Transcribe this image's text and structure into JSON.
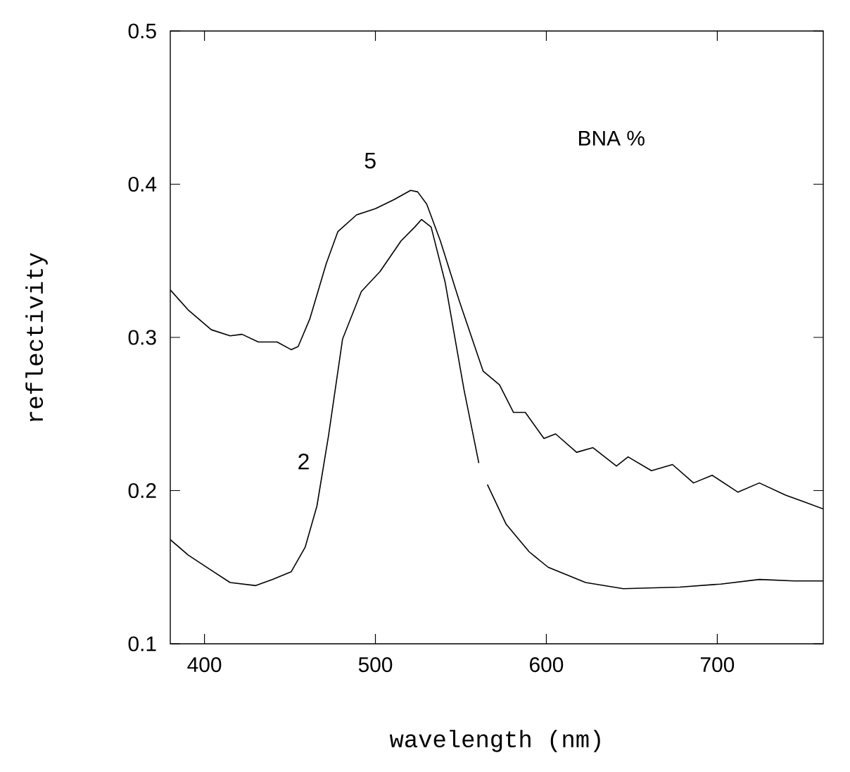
{
  "chart_data": {
    "type": "line",
    "xlabel": "wavelength (nm)",
    "ylabel": "reflectivity",
    "legend_title": "BNA %",
    "xlim": [
      380,
      762
    ],
    "ylim": [
      0.1,
      0.5
    ],
    "xticks": [
      400,
      500,
      600,
      700
    ],
    "yticks": [
      0.1,
      0.2,
      0.3,
      0.4,
      0.5
    ],
    "grid": false,
    "marker": "none",
    "line_style": "solid",
    "series": [
      {
        "name": "5",
        "color": "#000000",
        "x": [
          380,
          390.4,
          404,
          415,
          422,
          431.5,
          442.5,
          450.7,
          454.8,
          461.6,
          471.2,
          478,
          489,
          500,
          511,
          520.6,
          524.7,
          530,
          538,
          549,
          563,
          572.6,
          580.8,
          587.7,
          598.6,
          605.4,
          617.7,
          627.3,
          641,
          647.8,
          661.5,
          673.8,
          686.1,
          697,
          712,
          724.6,
          740,
          750,
          762
        ],
        "values": [
          0.331,
          0.318,
          0.305,
          0.301,
          0.302,
          0.297,
          0.297,
          0.292,
          0.294,
          0.312,
          0.348,
          0.369,
          0.38,
          0.384,
          0.39,
          0.396,
          0.395,
          0.387,
          0.363,
          0.324,
          0.278,
          0.269,
          0.251,
          0.251,
          0.234,
          0.237,
          0.225,
          0.228,
          0.216,
          0.222,
          0.213,
          0.217,
          0.205,
          0.21,
          0.199,
          0.205,
          0.197,
          0.193,
          0.188
        ]
      },
      {
        "name": "2",
        "color": "#000000",
        "x": [
          380,
          390.4,
          404,
          415,
          430,
          439.7,
          450.7,
          458.9,
          465.8,
          472.6,
          480.8,
          491.8,
          502.7,
          515,
          523,
          527,
          532.6,
          540.8,
          551.8,
          560.5,
          563,
          565.5,
          576.5,
          590,
          601,
          623,
          645,
          678,
          702,
          724.6,
          745,
          762
        ],
        "values": [
          0.168,
          0.158,
          0.148,
          0.14,
          0.138,
          0.142,
          0.147,
          0.163,
          0.19,
          0.236,
          0.299,
          0.33,
          0.343,
          0.363,
          0.372,
          0.377,
          0.372,
          0.336,
          0.266,
          0.218,
          null,
          0.204,
          0.178,
          0.16,
          0.15,
          0.14,
          0.136,
          0.137,
          0.139,
          0.142,
          0.141,
          0.141
        ]
      }
    ]
  }
}
